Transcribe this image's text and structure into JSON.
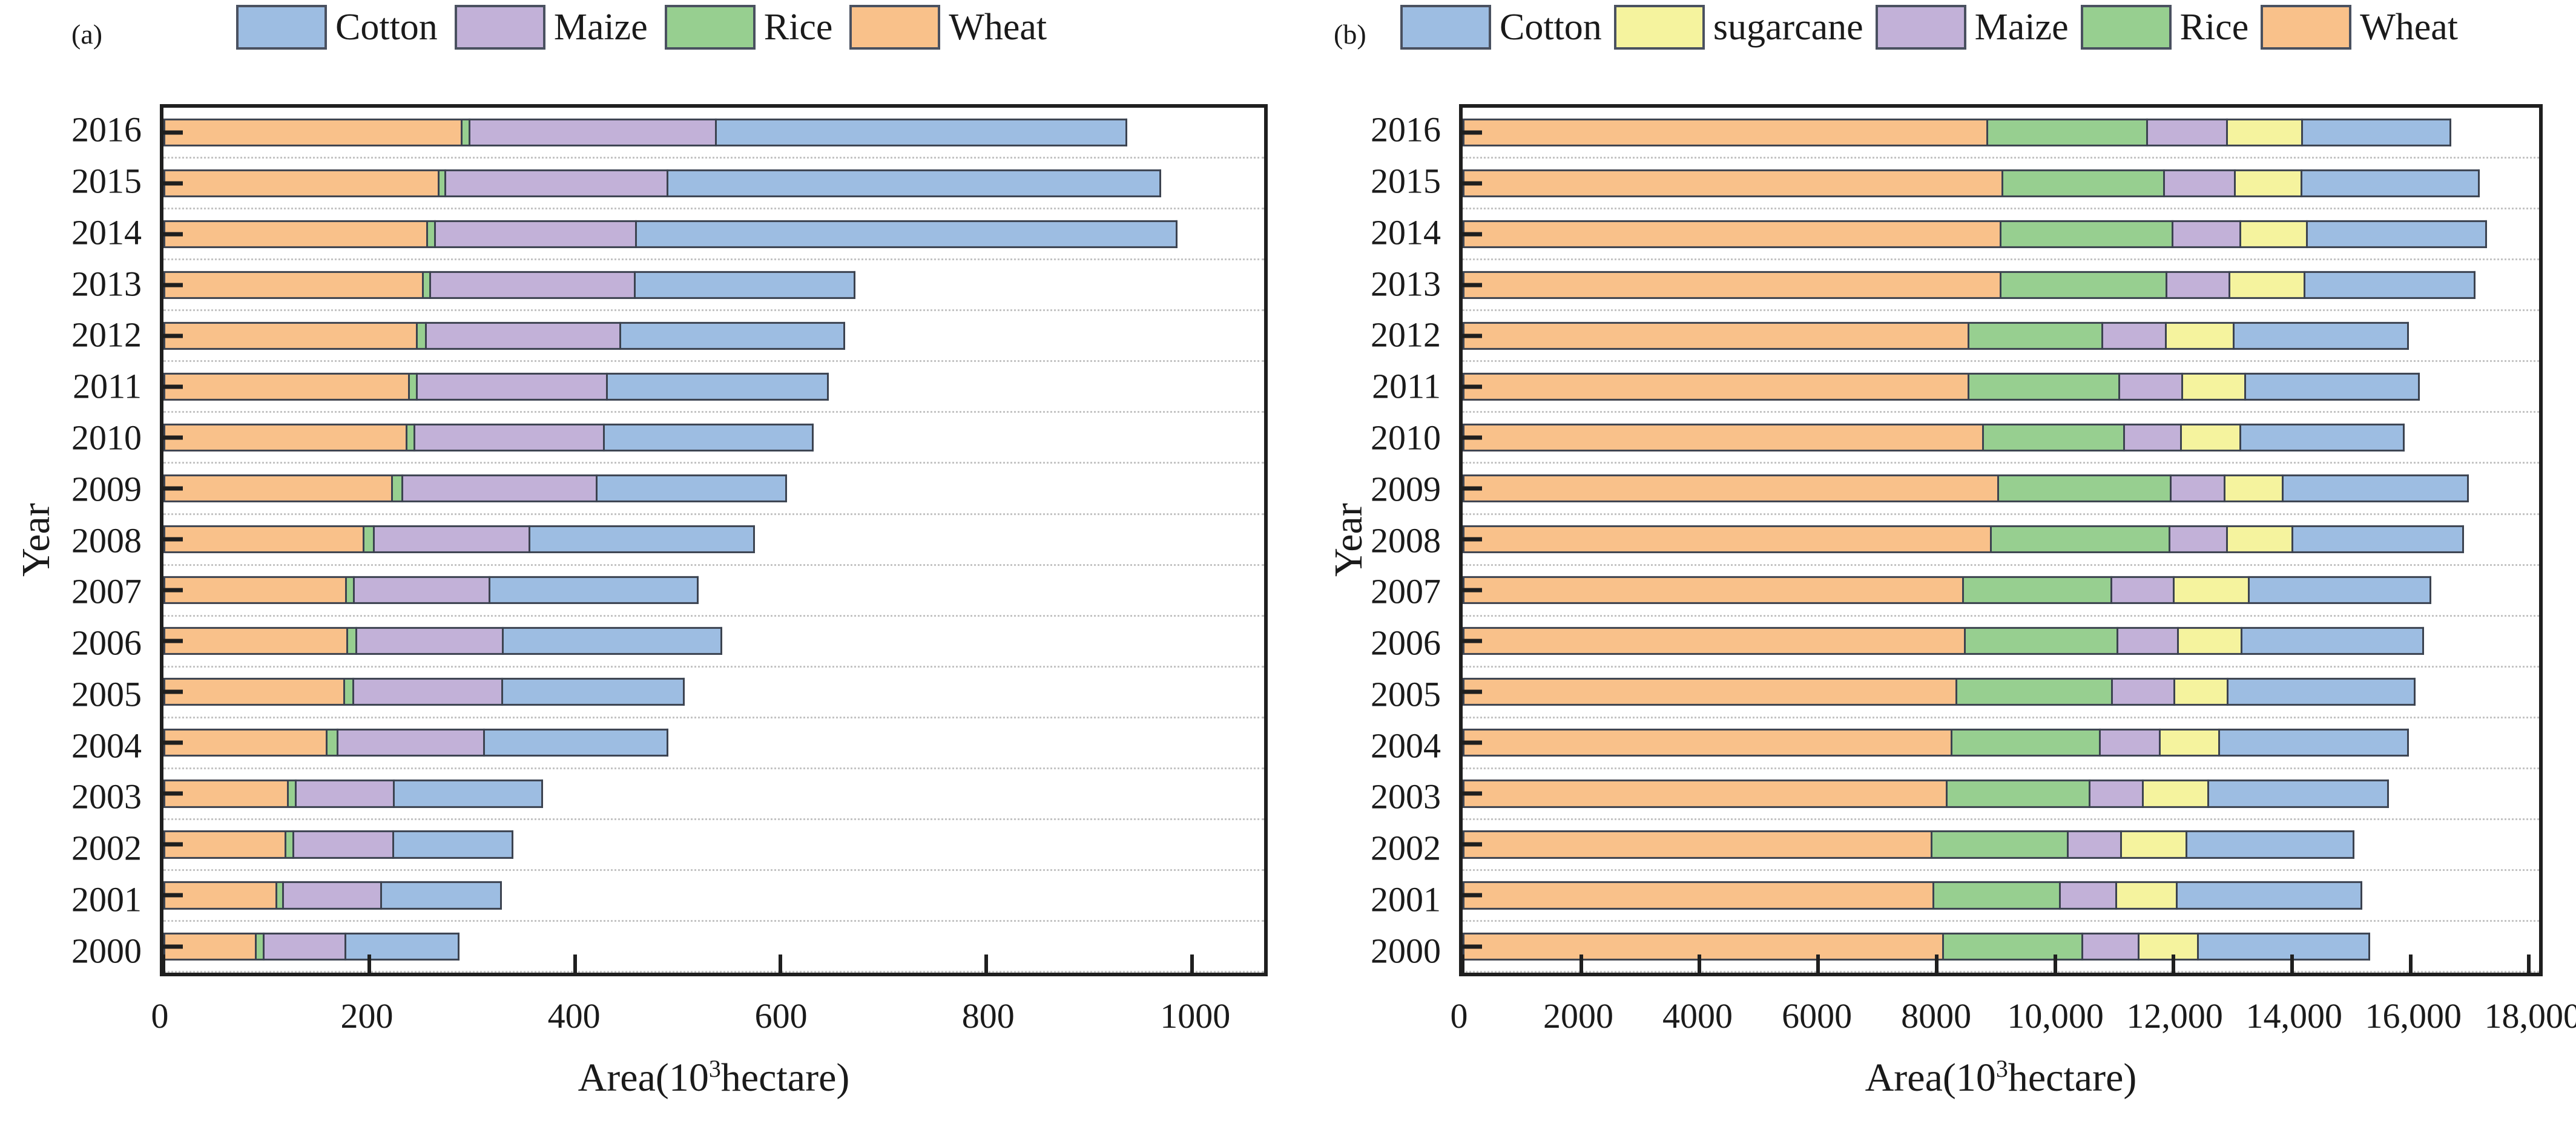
{
  "figure": {
    "background": "#ffffff",
    "bar_outline_color": "#3c4350",
    "spine_color": "#1f1f1f",
    "gridline_color": "#c4c4c4"
  },
  "chart_data": [
    {
      "type": "bar",
      "orientation": "horizontal",
      "stacked": true,
      "panel_label": "(a)",
      "ylabel": "Year",
      "xlabel_text": "Area(10³hectare)",
      "xlabel_parts": {
        "prefix": "Area(10",
        "sup": "3",
        "suffix": "hectare)"
      },
      "legend_position": "top",
      "legend": [
        "Cotton",
        "Maize",
        "Rice",
        "Wheat"
      ],
      "grid": "dotted horizontal lines between year rows",
      "xlim": [
        0,
        1070
      ],
      "xticks": [
        0,
        200,
        400,
        600,
        800,
        1000
      ],
      "xtick_labels": [
        "0",
        "200",
        "400",
        "600",
        "800",
        "1000"
      ],
      "categories": [
        2016,
        2015,
        2014,
        2013,
        2012,
        2011,
        2010,
        2009,
        2008,
        2007,
        2006,
        2005,
        2004,
        2003,
        2002,
        2001,
        2000
      ],
      "series": [
        {
          "name": "Wheat",
          "color": "#f9c18a",
          "values": [
            290,
            267,
            256,
            253,
            247,
            239,
            237,
            223,
            195,
            178,
            179,
            176,
            159,
            121,
            119,
            110,
            90
          ]
        },
        {
          "name": "Rice",
          "color": "#97cf90",
          "values": [
            6,
            5,
            6,
            5,
            7,
            6,
            6,
            8,
            8,
            6,
            7,
            7,
            9,
            6,
            6,
            5,
            6
          ]
        },
        {
          "name": "Maize",
          "color": "#c2b1d8",
          "values": [
            240,
            216,
            195,
            200,
            190,
            186,
            185,
            190,
            152,
            132,
            143,
            146,
            143,
            96,
            98,
            96,
            80
          ]
        },
        {
          "name": "Cotton",
          "color": "#9dbde2",
          "values": [
            401,
            482,
            529,
            215,
            219,
            216,
            204,
            185,
            220,
            204,
            214,
            178,
            180,
            146,
            117,
            118,
            112
          ]
        }
      ]
    },
    {
      "type": "bar",
      "orientation": "horizontal",
      "stacked": true,
      "panel_label": "(b)",
      "ylabel": "Year",
      "xlabel_text": "Area(10³hectare)",
      "xlabel_parts": {
        "prefix": "Area(10",
        "sup": "3",
        "suffix": "hectare)"
      },
      "legend_position": "top",
      "legend": [
        "Cotton",
        "sugarcane",
        "Maize",
        "Rice",
        "Wheat"
      ],
      "grid": "dotted horizontal lines between year rows",
      "xlim": [
        0,
        18170
      ],
      "xticks": [
        0,
        2000,
        4000,
        6000,
        8000,
        10000,
        12000,
        14000,
        16000,
        18000
      ],
      "xtick_labels": [
        "0",
        "2000",
        "4000",
        "6000",
        "8000",
        "10,000",
        "12,000",
        "14,000",
        "16,000",
        "18,000"
      ],
      "categories": [
        2016,
        2015,
        2014,
        2013,
        2012,
        2011,
        2010,
        2009,
        2008,
        2007,
        2006,
        2005,
        2004,
        2003,
        2002,
        2001,
        2000
      ],
      "series": [
        {
          "name": "Wheat",
          "color": "#f9c18a",
          "values": [
            8910,
            9160,
            9130,
            9130,
            8590,
            8590,
            8840,
            9090,
            8970,
            8500,
            8530,
            8380,
            8300,
            8220,
            7970,
            8000,
            8160
          ]
        },
        {
          "name": "Rice",
          "color": "#97cf90",
          "values": [
            2690,
            2730,
            2900,
            2800,
            2250,
            2540,
            2380,
            2920,
            3010,
            2500,
            2570,
            2630,
            2500,
            2410,
            2290,
            2130,
            2350
          ]
        },
        {
          "name": "Maize",
          "color": "#c2b1d8",
          "values": [
            1340,
            1180,
            1130,
            1040,
            1060,
            1050,
            940,
            880,
            960,
            1030,
            1000,
            1030,
            1000,
            880,
            880,
            930,
            930
          ]
        },
        {
          "name": "sugarcane",
          "color": "#f5f39e",
          "values": [
            1250,
            1100,
            1100,
            1250,
            1130,
            1040,
            980,
            960,
            1080,
            1250,
            1060,
            880,
            980,
            1090,
            1090,
            1000,
            980
          ]
        },
        {
          "name": "Cotton",
          "color": "#9dbde2",
          "values": [
            2500,
            3000,
            3030,
            2880,
            2940,
            2940,
            2760,
            3130,
            2880,
            3070,
            3070,
            3170,
            3190,
            3040,
            2820,
            3130,
            2900
          ]
        }
      ]
    }
  ]
}
